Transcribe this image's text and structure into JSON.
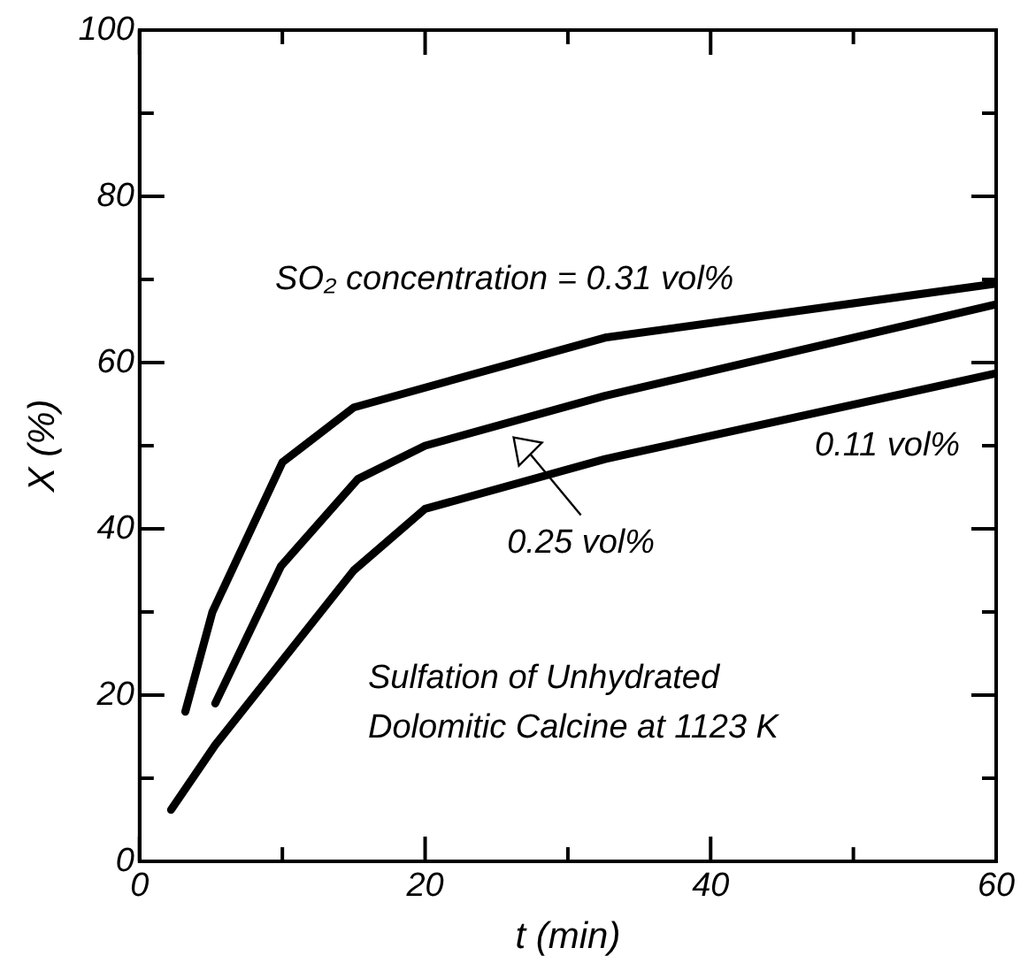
{
  "chart_data": {
    "type": "line",
    "xlabel": "t (min)",
    "ylabel": "X (%)",
    "xlim": [
      0,
      60
    ],
    "xticks": [
      0,
      {
        "value": 10,
        "label": null
      },
      20,
      {
        "value": 30,
        "label": null
      },
      40,
      {
        "value": 50,
        "label": null
      },
      60
    ],
    "ylim": [
      0,
      100
    ],
    "yticks": [
      0,
      {
        "value": 10,
        "label": null
      },
      20,
      {
        "value": 30,
        "label": null
      },
      40,
      {
        "value": 50,
        "label": null
      },
      60,
      {
        "value": 70,
        "label": null
      },
      80,
      {
        "value": 90,
        "label": null
      },
      100
    ],
    "grid": false,
    "legend": false,
    "marker": "none",
    "line_style": "solid",
    "series": [
      {
        "color": "#000000",
        "x": [
          3.2,
          5.1,
          10,
          15,
          32.6,
          60
        ],
        "values": [
          18,
          30,
          48,
          54.6,
          63,
          69.5
        ]
      },
      {
        "color": "#000000",
        "x": [
          5.3,
          9.9,
          15.3,
          20,
          32.6,
          60
        ],
        "values": [
          19,
          35.5,
          46,
          50,
          56,
          67
        ]
      },
      {
        "color": "#000000",
        "x": [
          2.2,
          5.3,
          15,
          20,
          32.6,
          60
        ],
        "values": [
          6.2,
          14,
          35,
          42.4,
          48.4,
          58.7
        ]
      }
    ],
    "annotations": [
      "SO₂ concentration = 0.31 vol%",
      "0.25 vol%",
      "0.11 vol%",
      "Sulfation of Unhydrated",
      "Dolomitic Calcine at 1123 K"
    ]
  }
}
